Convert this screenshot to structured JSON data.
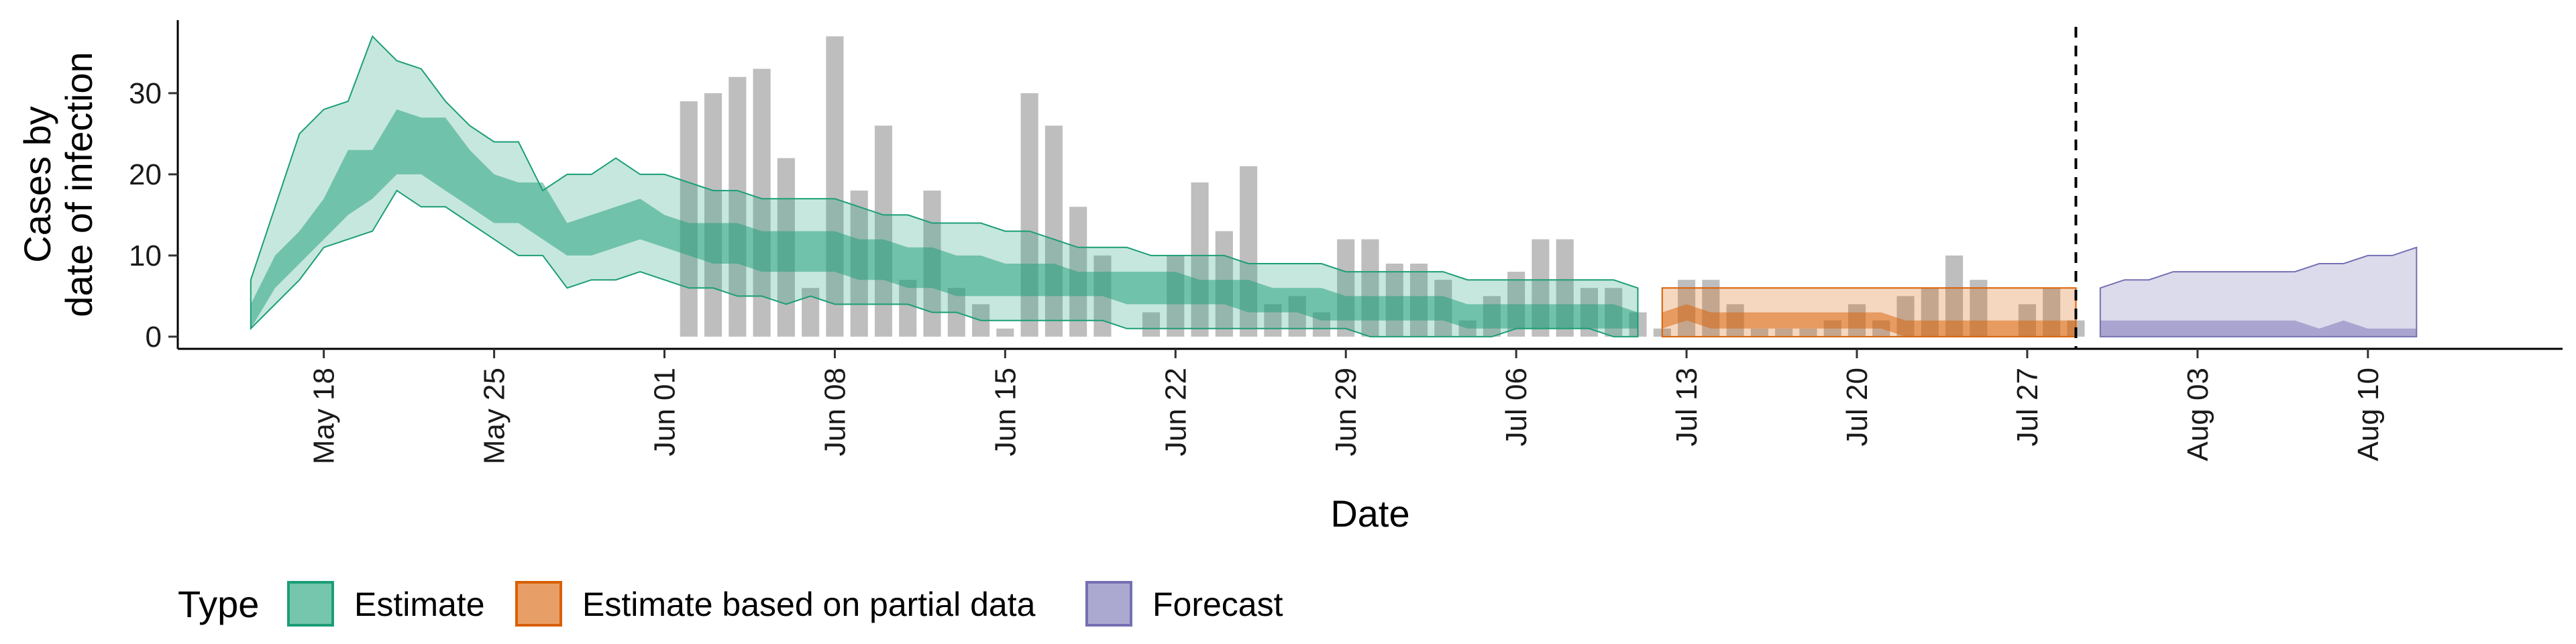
{
  "chart_data": {
    "type": "area",
    "xlabel": "Date",
    "ylabel": [
      "Cases by",
      "date of infection"
    ],
    "y_ticks": [
      0,
      10,
      20,
      30
    ],
    "ylim": [
      -1.5,
      39
    ],
    "x_range": [
      "2020-05-12",
      "2020-08-18"
    ],
    "x_ticks": [
      {
        "date": "2020-05-18",
        "label": "May 18"
      },
      {
        "date": "2020-05-25",
        "label": "May 25"
      },
      {
        "date": "2020-06-01",
        "label": "Jun 01"
      },
      {
        "date": "2020-06-08",
        "label": "Jun 08"
      },
      {
        "date": "2020-06-15",
        "label": "Jun 15"
      },
      {
        "date": "2020-06-22",
        "label": "Jun 22"
      },
      {
        "date": "2020-06-29",
        "label": "Jun 29"
      },
      {
        "date": "2020-07-06",
        "label": "Jul 06"
      },
      {
        "date": "2020-07-13",
        "label": "Jul 13"
      },
      {
        "date": "2020-07-20",
        "label": "Jul 20"
      },
      {
        "date": "2020-07-27",
        "label": "Jul 27"
      },
      {
        "date": "2020-08-03",
        "label": "Aug 03"
      },
      {
        "date": "2020-08-10",
        "label": "Aug 10"
      }
    ],
    "forecast_start": "2020-07-29",
    "grid": false,
    "colors": {
      "estimate": "#1b9e77",
      "partial": "#d95f02",
      "forecast": "#7570b3",
      "bars": "#b3b3b3"
    },
    "reported_cases": {
      "dates": [
        "2020-06-02",
        "2020-06-03",
        "2020-06-04",
        "2020-06-05",
        "2020-06-06",
        "2020-06-07",
        "2020-06-08",
        "2020-06-09",
        "2020-06-10",
        "2020-06-11",
        "2020-06-12",
        "2020-06-13",
        "2020-06-14",
        "2020-06-15",
        "2020-06-16",
        "2020-06-17",
        "2020-06-18",
        "2020-06-19",
        "2020-06-20",
        "2020-06-21",
        "2020-06-22",
        "2020-06-23",
        "2020-06-24",
        "2020-06-25",
        "2020-06-26",
        "2020-06-27",
        "2020-06-28",
        "2020-06-29",
        "2020-06-30",
        "2020-07-01",
        "2020-07-02",
        "2020-07-03",
        "2020-07-04",
        "2020-07-05",
        "2020-07-06",
        "2020-07-07",
        "2020-07-08",
        "2020-07-09",
        "2020-07-10",
        "2020-07-11",
        "2020-07-12",
        "2020-07-13",
        "2020-07-14",
        "2020-07-15",
        "2020-07-16",
        "2020-07-17",
        "2020-07-18",
        "2020-07-19",
        "2020-07-20",
        "2020-07-21",
        "2020-07-22",
        "2020-07-23",
        "2020-07-24",
        "2020-07-25",
        "2020-07-26",
        "2020-07-27",
        "2020-07-28",
        "2020-07-29"
      ],
      "values": [
        29,
        30,
        32,
        33,
        22,
        6,
        37,
        18,
        26,
        7,
        18,
        6,
        4,
        1,
        30,
        26,
        16,
        10,
        0,
        3,
        10,
        19,
        13,
        21,
        4,
        5,
        3,
        12,
        12,
        9,
        9,
        7,
        2,
        5,
        8,
        12,
        12,
        6,
        6,
        3,
        1,
        7,
        7,
        4,
        1,
        1,
        1,
        2,
        4,
        2,
        5,
        6,
        10,
        7,
        0,
        4,
        6,
        2
      ]
    },
    "series": [
      {
        "name": "Estimate",
        "dates": [
          "2020-05-15",
          "2020-05-16",
          "2020-05-17",
          "2020-05-18",
          "2020-05-19",
          "2020-05-20",
          "2020-05-21",
          "2020-05-22",
          "2020-05-23",
          "2020-05-24",
          "2020-05-25",
          "2020-05-26",
          "2020-05-27",
          "2020-05-28",
          "2020-05-29",
          "2020-05-30",
          "2020-05-31",
          "2020-06-01",
          "2020-06-02",
          "2020-06-03",
          "2020-06-04",
          "2020-06-05",
          "2020-06-06",
          "2020-06-07",
          "2020-06-08",
          "2020-06-09",
          "2020-06-10",
          "2020-06-11",
          "2020-06-12",
          "2020-06-13",
          "2020-06-14",
          "2020-06-15",
          "2020-06-16",
          "2020-06-17",
          "2020-06-18",
          "2020-06-19",
          "2020-06-20",
          "2020-06-21",
          "2020-06-22",
          "2020-06-23",
          "2020-06-24",
          "2020-06-25",
          "2020-06-26",
          "2020-06-27",
          "2020-06-28",
          "2020-06-29",
          "2020-06-30",
          "2020-07-01",
          "2020-07-02",
          "2020-07-03",
          "2020-07-04",
          "2020-07-05",
          "2020-07-06",
          "2020-07-07",
          "2020-07-08",
          "2020-07-09",
          "2020-07-10",
          "2020-07-11"
        ],
        "outer_lower": [
          1,
          4,
          7,
          11,
          12,
          13,
          18,
          16,
          16,
          14,
          12,
          10,
          10,
          6,
          7,
          7,
          8,
          7,
          6,
          6,
          5,
          5,
          4,
          5,
          4,
          4,
          4,
          4,
          3,
          3,
          2,
          2,
          2,
          2,
          2,
          2,
          1,
          1,
          1,
          1,
          1,
          1,
          1,
          1,
          1,
          1,
          0,
          0,
          0,
          0,
          0,
          0,
          1,
          1,
          1,
          1,
          0,
          0
        ],
        "outer_upper": [
          7,
          16,
          25,
          28,
          29,
          37,
          34,
          33,
          29,
          26,
          24,
          24,
          18,
          20,
          20,
          22,
          20,
          20,
          19,
          18,
          18,
          17,
          17,
          17,
          17,
          16,
          15,
          15,
          14,
          14,
          14,
          13,
          13,
          12,
          11,
          11,
          11,
          10,
          10,
          10,
          10,
          9,
          9,
          9,
          9,
          8,
          8,
          8,
          8,
          8,
          7,
          7,
          7,
          7,
          7,
          7,
          7,
          6
        ],
        "inner_lower": [
          1,
          6,
          9,
          12,
          15,
          17,
          20,
          20,
          18,
          16,
          14,
          14,
          12,
          10,
          10,
          11,
          12,
          11,
          10,
          9,
          9,
          8,
          8,
          8,
          8,
          7,
          7,
          6,
          6,
          5,
          5,
          5,
          5,
          5,
          5,
          5,
          4,
          4,
          4,
          4,
          4,
          3,
          3,
          3,
          2,
          2,
          2,
          2,
          2,
          2,
          1,
          1,
          1,
          1,
          1,
          1,
          1,
          1
        ],
        "inner_upper": [
          4,
          10,
          13,
          17,
          23,
          23,
          28,
          27,
          27,
          23,
          20,
          19,
          19,
          14,
          15,
          16,
          17,
          15,
          14,
          14,
          14,
          13,
          13,
          13,
          13,
          12,
          12,
          11,
          11,
          10,
          10,
          9,
          9,
          9,
          8,
          8,
          8,
          8,
          8,
          7,
          7,
          7,
          6,
          6,
          6,
          5,
          5,
          5,
          5,
          5,
          4,
          4,
          4,
          4,
          4,
          4,
          4,
          3
        ]
      },
      {
        "name": "Estimate based on partial data",
        "dates": [
          "2020-07-12",
          "2020-07-13",
          "2020-07-14",
          "2020-07-15",
          "2020-07-16",
          "2020-07-17",
          "2020-07-18",
          "2020-07-19",
          "2020-07-20",
          "2020-07-21",
          "2020-07-22",
          "2020-07-23",
          "2020-07-24",
          "2020-07-25",
          "2020-07-26",
          "2020-07-27",
          "2020-07-28",
          "2020-07-29"
        ],
        "outer_lower": [
          0,
          0,
          0,
          0,
          0,
          0,
          0,
          0,
          0,
          0,
          0,
          0,
          0,
          0,
          0,
          0,
          0,
          0
        ],
        "outer_upper": [
          6,
          6,
          6,
          6,
          6,
          6,
          6,
          6,
          6,
          6,
          6,
          6,
          6,
          6,
          6,
          6,
          6,
          6
        ],
        "inner_lower": [
          1,
          2,
          1,
          1,
          1,
          1,
          1,
          1,
          1,
          1,
          0,
          0,
          0,
          0,
          0,
          0,
          0,
          0
        ],
        "inner_upper": [
          3,
          4,
          3,
          3,
          3,
          3,
          3,
          3,
          3,
          3,
          2,
          2,
          2,
          2,
          2,
          2,
          2,
          2
        ]
      },
      {
        "name": "Forecast",
        "dates": [
          "2020-07-30",
          "2020-07-31",
          "2020-08-01",
          "2020-08-02",
          "2020-08-03",
          "2020-08-04",
          "2020-08-05",
          "2020-08-06",
          "2020-08-07",
          "2020-08-08",
          "2020-08-09",
          "2020-08-10",
          "2020-08-11",
          "2020-08-12"
        ],
        "outer_lower": [
          0,
          0,
          0,
          0,
          0,
          0,
          0,
          0,
          0,
          0,
          0,
          0,
          0,
          0
        ],
        "outer_upper": [
          6,
          7,
          7,
          8,
          8,
          8,
          8,
          8,
          8,
          9,
          9,
          10,
          10,
          11
        ],
        "inner_lower": [
          0,
          0,
          0,
          0,
          0,
          0,
          0,
          0,
          0,
          0,
          0,
          0,
          0,
          0
        ],
        "inner_upper": [
          2,
          2,
          2,
          2,
          2,
          2,
          2,
          2,
          2,
          1,
          2,
          1,
          1,
          1
        ]
      }
    ],
    "legend": {
      "title": "Type",
      "placement": "bottom-left",
      "items": [
        "Estimate",
        "Estimate based on partial data",
        "Forecast"
      ]
    }
  }
}
